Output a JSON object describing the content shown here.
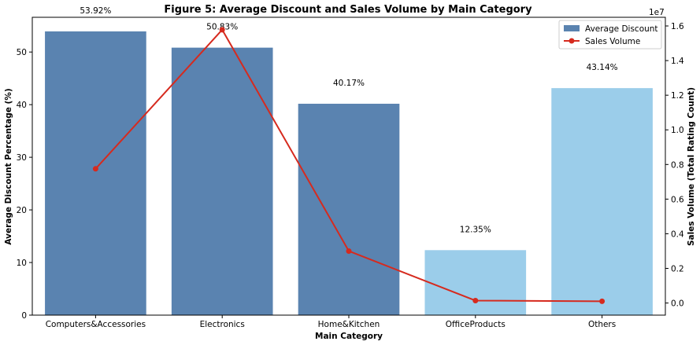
{
  "chart_data": {
    "type": "bar",
    "title": "Figure 5: Average Discount and Sales Volume by Main Category",
    "xlabel": "Main Category",
    "ylabel": "Average Discount Percentage (%)",
    "y2label": "Sales Volume (Total Rating Count)",
    "y2_offset_label": "1e7",
    "categories": [
      "Computers&Accessories",
      "Electronics",
      "Home&Kitchen",
      "OfficeProducts",
      "Others"
    ],
    "ylim": [
      0,
      56.6
    ],
    "yticks": [
      0,
      10,
      20,
      30,
      40,
      50
    ],
    "y2lim": [
      -0.07,
      1.65
    ],
    "y2ticks": [
      0.0,
      0.2,
      0.4,
      0.6,
      0.8,
      1.0,
      1.2,
      1.4,
      1.6
    ],
    "series": [
      {
        "name": "Average Discount",
        "type": "bar",
        "values": [
          53.92,
          50.83,
          40.17,
          12.35,
          43.14
        ],
        "data_labels": [
          "53.92%",
          "50.83%",
          "40.17%",
          "12.35%",
          "43.14%"
        ],
        "colors": [
          "#5a83b0",
          "#5a83b0",
          "#5a83b0",
          "#9bcdea",
          "#9bcdea"
        ]
      },
      {
        "name": "Sales Volume",
        "type": "line",
        "axis": "right",
        "values": [
          0.775,
          1.578,
          0.3,
          0.014,
          0.01
        ],
        "color": "#d62a1e"
      }
    ],
    "grid": false,
    "legend_position": "upper right"
  }
}
